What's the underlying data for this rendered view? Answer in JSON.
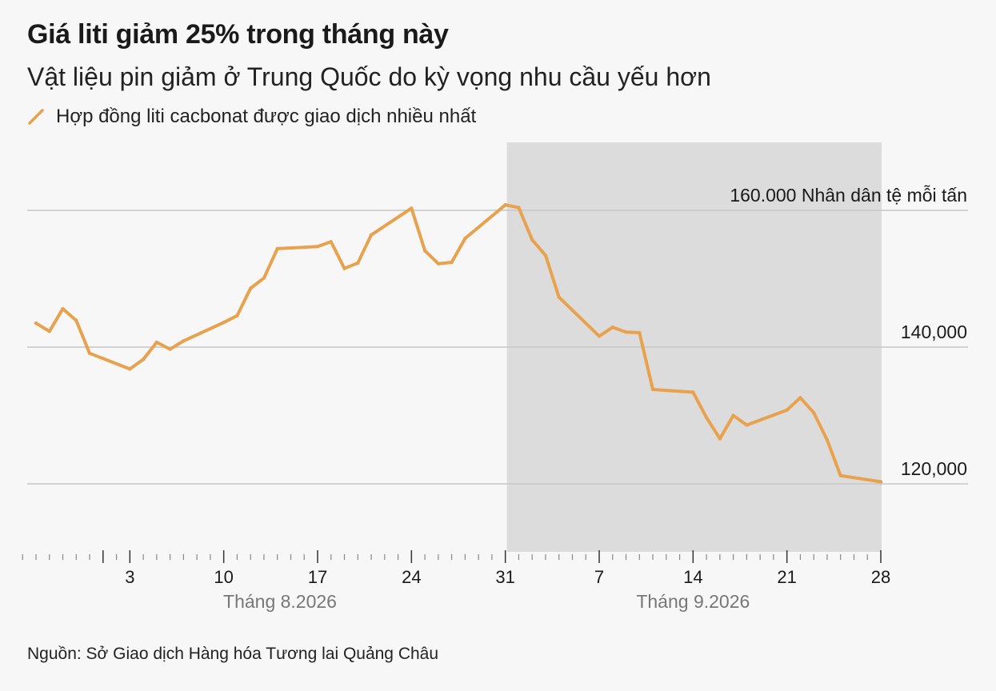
{
  "title": "Giá liti giảm 25% trong tháng này",
  "subtitle": "Vật liệu pin giảm ở Trung Quốc do kỳ vọng nhu cầu yếu hơn",
  "legend_label": "Hợp đồng liti cacbonat được giao dịch nhiều nhất",
  "source": "Nguồn: Sở Giao dịch Hàng hóa Tương lai Quảng Châu",
  "colors": {
    "line": "#e8a14c",
    "shade": "#dcdcdc",
    "grid": "#c6c6c6",
    "axis": "#333333",
    "month_label": "#777777"
  },
  "chart_data": {
    "type": "line",
    "title": "Giá liti giảm 25% trong tháng này",
    "subtitle": "Vật liệu pin giảm ở Trung Quốc do kỳ vọng nhu cầu yếu hơn",
    "series": [
      {
        "name": "Hợp đồng liti cacbonat được giao dịch nhiều nhất",
        "points": [
          [
            "2026-07-27",
            143500
          ],
          [
            "2026-07-28",
            142300
          ],
          [
            "2026-07-29",
            145600
          ],
          [
            "2026-07-30",
            143900
          ],
          [
            "2026-07-31",
            139100
          ],
          [
            "2026-08-03",
            136800
          ],
          [
            "2026-08-04",
            138200
          ],
          [
            "2026-08-05",
            140700
          ],
          [
            "2026-08-06",
            139700
          ],
          [
            "2026-08-07",
            140900
          ],
          [
            "2026-08-10",
            143600
          ],
          [
            "2026-08-11",
            144600
          ],
          [
            "2026-08-12",
            148600
          ],
          [
            "2026-08-13",
            150100
          ],
          [
            "2026-08-14",
            154400
          ],
          [
            "2026-08-17",
            154700
          ],
          [
            "2026-08-18",
            155400
          ],
          [
            "2026-08-19",
            151500
          ],
          [
            "2026-08-20",
            152300
          ],
          [
            "2026-08-21",
            156400
          ],
          [
            "2026-08-24",
            160300
          ],
          [
            "2026-08-25",
            154100
          ],
          [
            "2026-08-26",
            152200
          ],
          [
            "2026-08-27",
            152400
          ],
          [
            "2026-08-28",
            155900
          ],
          [
            "2026-08-31",
            160800
          ],
          [
            "2026-09-01",
            160400
          ],
          [
            "2026-09-02",
            155700
          ],
          [
            "2026-09-03",
            153400
          ],
          [
            "2026-09-04",
            147300
          ],
          [
            "2026-09-07",
            141600
          ],
          [
            "2026-09-08",
            142900
          ],
          [
            "2026-09-09",
            142200
          ],
          [
            "2026-09-10",
            142100
          ],
          [
            "2026-09-11",
            133800
          ],
          [
            "2026-09-14",
            133400
          ],
          [
            "2026-09-15",
            129700
          ],
          [
            "2026-09-16",
            126600
          ],
          [
            "2026-09-17",
            130000
          ],
          [
            "2026-09-18",
            128600
          ],
          [
            "2026-09-21",
            130800
          ],
          [
            "2026-09-22",
            132600
          ],
          [
            "2026-09-23",
            130400
          ],
          [
            "2026-09-24",
            126400
          ],
          [
            "2026-09-25",
            121200
          ],
          [
            "2026-09-28",
            120300
          ]
        ]
      }
    ],
    "y_ticks": [
      {
        "value": 160000,
        "label": "160.000 Nhân dân tệ mỗi tấn"
      },
      {
        "value": 140000,
        "label": "140,000"
      },
      {
        "value": 120000,
        "label": "120,000"
      }
    ],
    "x_tick_labels": [
      "3",
      "10",
      "17",
      "24",
      "31",
      "7",
      "14",
      "21",
      "28"
    ],
    "x_month_labels": [
      "Tháng 8.2026",
      "Tháng 9.2026"
    ],
    "x_range": [
      "2026-07-27",
      "2026-09-28"
    ],
    "ylim": [
      110000,
      165000
    ],
    "highlight_range": [
      "2026-08-31",
      "2026-09-28"
    ],
    "grid": true
  }
}
